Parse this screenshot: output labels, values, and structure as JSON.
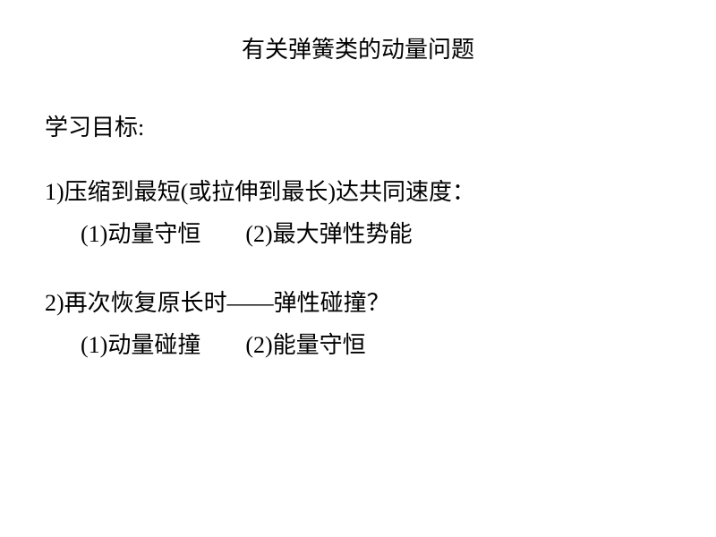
{
  "title": "有关弹簧类的动量问题",
  "section_header": "学习目标:",
  "points": [
    {
      "main": "1)压缩到最短(或拉伸到最长)达共同速度：",
      "sub_a": "(1)动量守恒",
      "sub_b": "(2)最大弹性势能"
    },
    {
      "main": "2)再次恢复原长时——弹性碰撞？",
      "sub_a": "(1)动量碰撞",
      "sub_b": "(2)能量守恒"
    }
  ],
  "style": {
    "background_color": "#ffffff",
    "text_color": "#000000",
    "title_fontsize": 26,
    "body_fontsize": 26,
    "font_family": "SimSun, 宋体, serif"
  }
}
